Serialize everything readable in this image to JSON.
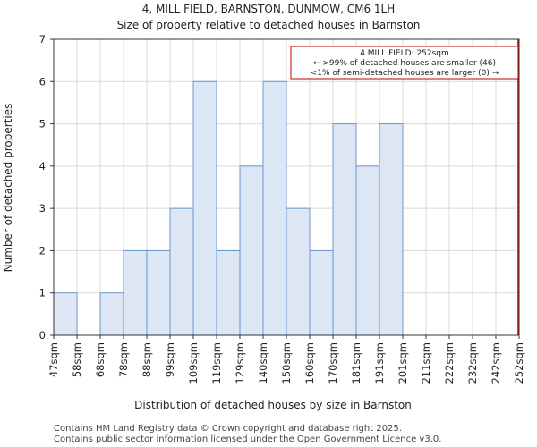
{
  "chart_data": {
    "type": "bar",
    "title": "4, MILL FIELD, BARNSTON, DUNMOW, CM6 1LH",
    "subtitle": "Size of property relative to detached houses in Barnston",
    "xlabel": "Distribution of detached houses by size in Barnston",
    "ylabel": "Number of detached properties",
    "categories": [
      "47sqm",
      "58sqm",
      "68sqm",
      "78sqm",
      "88sqm",
      "99sqm",
      "109sqm",
      "119sqm",
      "129sqm",
      "140sqm",
      "150sqm",
      "160sqm",
      "170sqm",
      "181sqm",
      "191sqm",
      "201sqm",
      "211sqm",
      "222sqm",
      "232sqm",
      "242sqm",
      "252sqm"
    ],
    "values": [
      1,
      0,
      1,
      2,
      2,
      3,
      6,
      2,
      4,
      6,
      3,
      2,
      5,
      4,
      5,
      0,
      0,
      0,
      0,
      0,
      0
    ],
    "ylim": [
      0,
      7
    ],
    "yticks": [
      0,
      1,
      2,
      3,
      4,
      5,
      6,
      7
    ],
    "grid": true,
    "bar_color": "#dce6f4",
    "bar_edge_color": "#6a95cc",
    "marker": {
      "category": "252sqm",
      "color": "#c00000",
      "lines": [
        "4 MILL FIELD: 252sqm",
        "← >99% of detached houses are smaller (46)",
        "<1% of semi-detached houses are larger (0) →"
      ]
    }
  },
  "footer": {
    "line1": "Contains HM Land Registry data © Crown copyright and database right 2025.",
    "line2": "Contains public sector information licensed under the Open Government Licence v3.0."
  }
}
